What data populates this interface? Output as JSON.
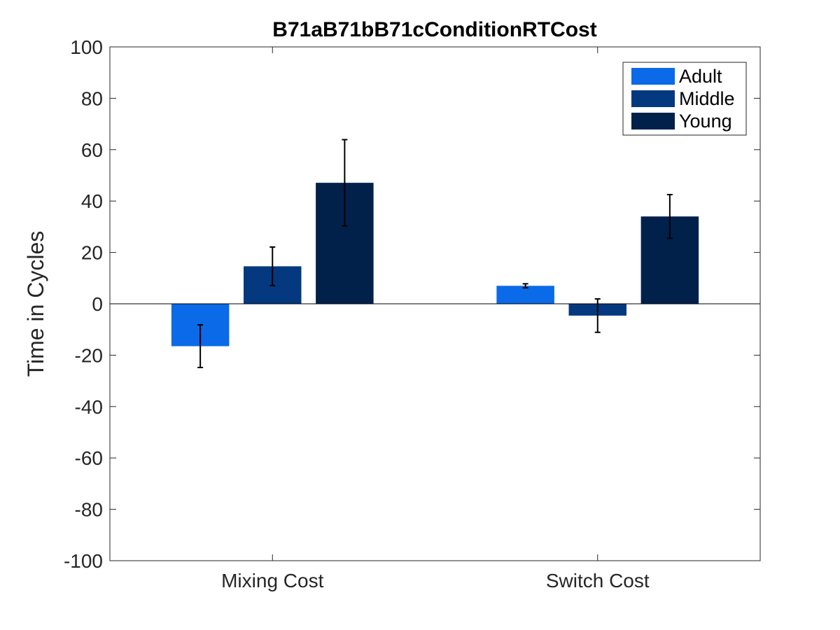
{
  "chart_data": {
    "type": "bar",
    "title": "B71aB71bB71cConditionRTCost",
    "xlabel": "",
    "ylabel": "Time in Cycles",
    "ylim": [
      -100,
      100
    ],
    "yticks": [
      100,
      80,
      60,
      40,
      20,
      0,
      -20,
      -40,
      -60,
      -80,
      -100
    ],
    "categories": [
      "Mixing Cost",
      "Switch Cost"
    ],
    "series": [
      {
        "name": "Adult",
        "color": "#0a6ae8",
        "values": [
          -16.5,
          7.0
        ],
        "errors": [
          8.3,
          0.8
        ]
      },
      {
        "name": "Middle",
        "color": "#04397f",
        "values": [
          14.6,
          -4.6
        ],
        "errors": [
          7.5,
          6.5
        ]
      },
      {
        "name": "Young",
        "color": "#01214b",
        "values": [
          47.1,
          34.0
        ],
        "errors": [
          16.8,
          8.5
        ]
      }
    ],
    "legend": {
      "position": "top-right"
    },
    "grid": false
  }
}
